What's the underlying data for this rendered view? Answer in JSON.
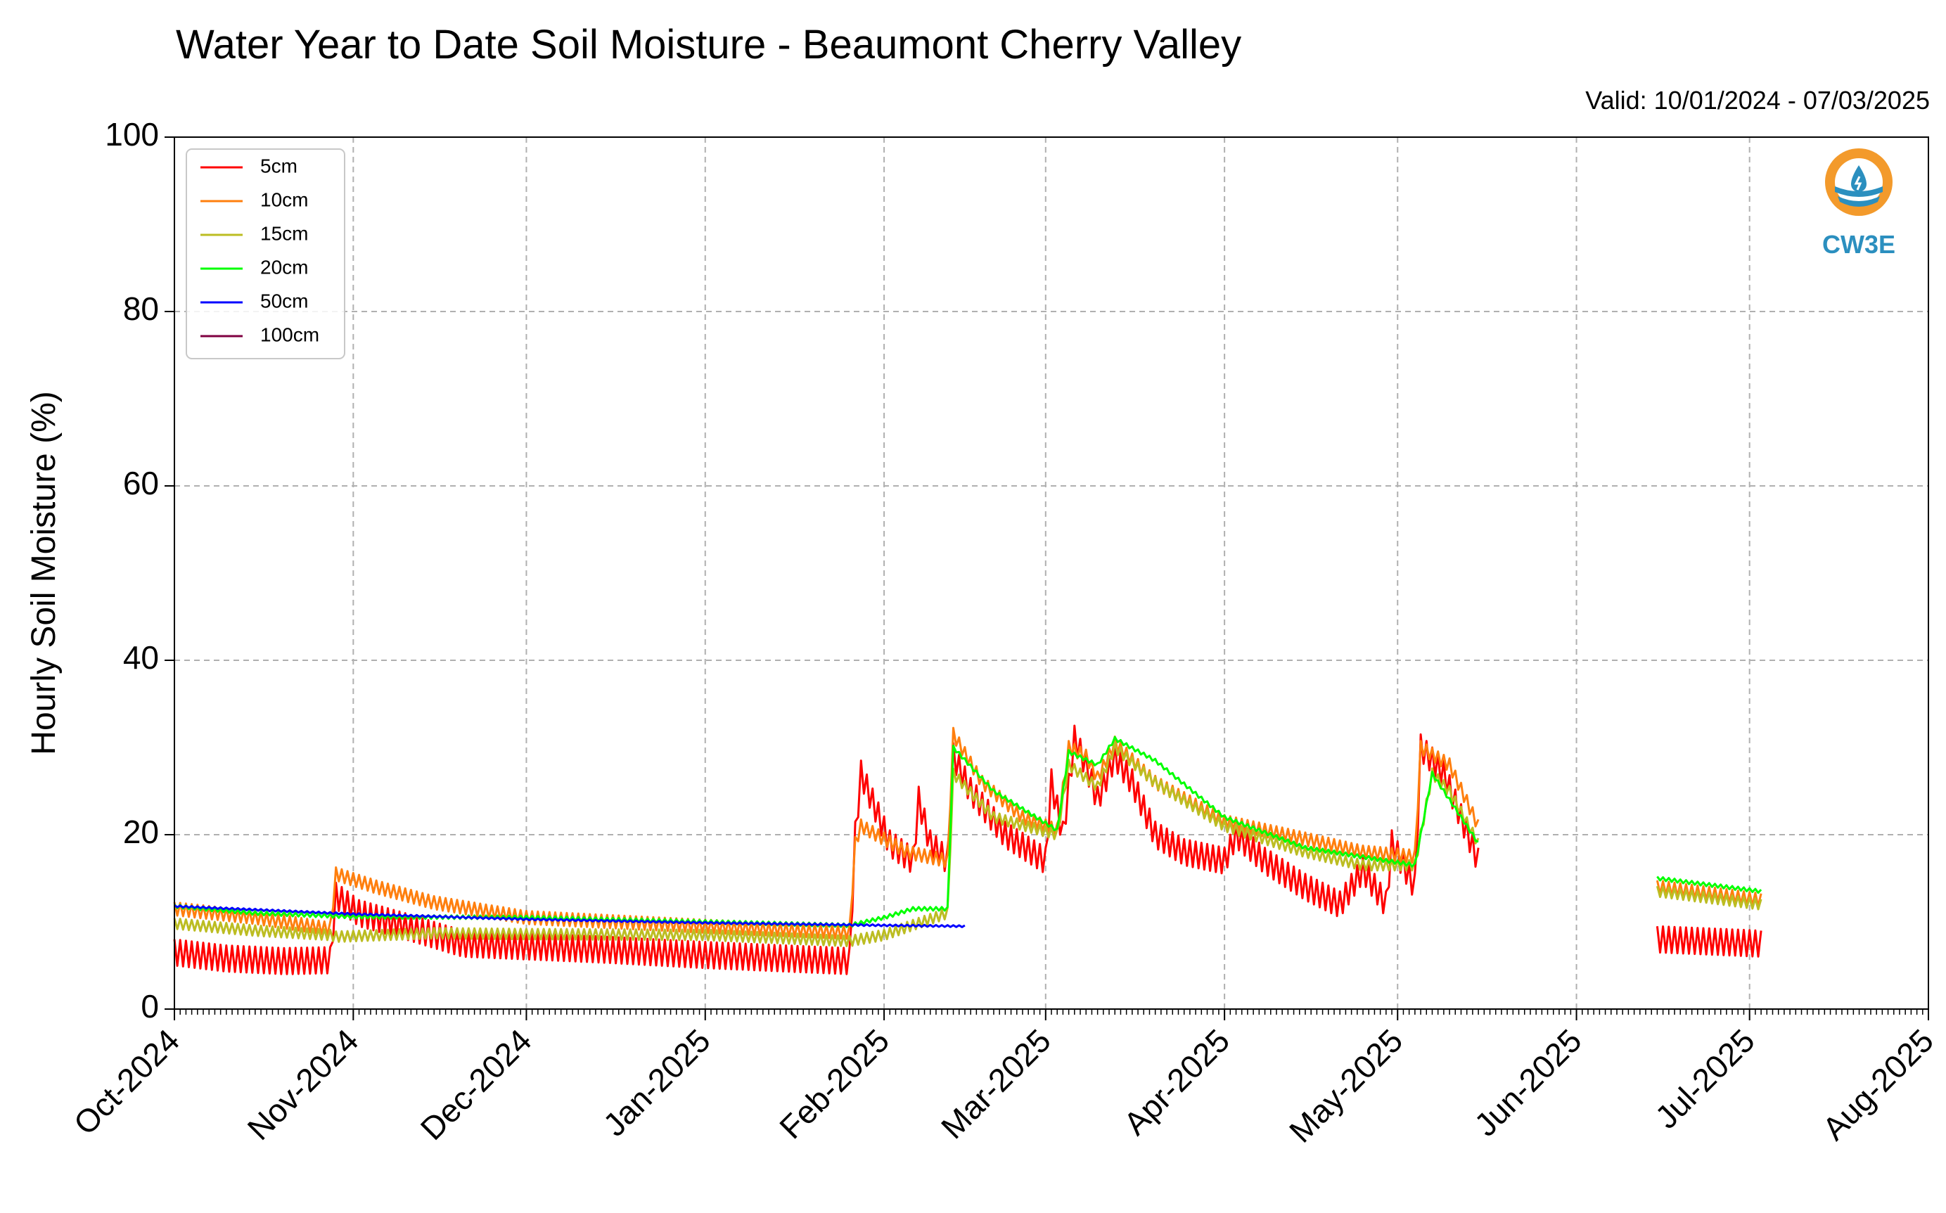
{
  "chart_data": {
    "type": "line",
    "title": "Water Year to Date Soil Moisture - Beaumont Cherry Valley",
    "subtitle": "Valid: 10/01/2024 - 07/03/2025",
    "ylabel": "Hourly Soil Moisture (%)",
    "xlabel": "",
    "ylim": [
      0,
      100
    ],
    "xlim": [
      "2024-10-01",
      "2025-08-01"
    ],
    "yticks": [
      0,
      20,
      40,
      60,
      80,
      100
    ],
    "xticks": [
      "Oct-2024",
      "Nov-2024",
      "Dec-2024",
      "Jan-2025",
      "Feb-2025",
      "Mar-2025",
      "Apr-2025",
      "May-2025",
      "Jun-2025",
      "Jul-2025",
      "Aug-2025"
    ],
    "xtick_dates": [
      "2024-10-01",
      "2024-11-01",
      "2024-12-01",
      "2025-01-01",
      "2025-02-01",
      "2025-03-01",
      "2025-04-01",
      "2025-05-01",
      "2025-06-01",
      "2025-07-01",
      "2025-08-01"
    ],
    "grid": true,
    "legend_position": "top-left",
    "series": [
      {
        "name": "5cm",
        "color": "#ff0000",
        "daily_amplitude": 3.0,
        "points": [
          [
            "2024-10-01",
            6.5
          ],
          [
            "2024-10-10",
            5.8
          ],
          [
            "2024-10-20",
            5.5
          ],
          [
            "2024-10-28",
            5.6
          ],
          [
            "2024-10-29",
            13
          ],
          [
            "2024-11-02",
            11
          ],
          [
            "2024-11-10",
            9.5
          ],
          [
            "2024-11-20",
            7.5
          ],
          [
            "2024-12-01",
            7.2
          ],
          [
            "2024-12-15",
            6.8
          ],
          [
            "2025-01-01",
            6.2
          ],
          [
            "2025-01-15",
            5.8
          ],
          [
            "2025-01-26",
            5.5
          ],
          [
            "2025-01-27",
            20
          ],
          [
            "2025-01-28",
            27
          ],
          [
            "2025-02-02",
            19
          ],
          [
            "2025-02-06",
            17
          ],
          [
            "2025-02-07",
            24
          ],
          [
            "2025-02-09",
            19
          ],
          [
            "2025-02-12",
            17
          ],
          [
            "2025-02-13",
            29
          ],
          [
            "2025-02-16",
            25
          ],
          [
            "2025-02-22",
            20
          ],
          [
            "2025-03-01",
            17
          ],
          [
            "2025-03-02",
            26
          ],
          [
            "2025-03-04",
            20
          ],
          [
            "2025-03-06",
            31
          ],
          [
            "2025-03-08",
            28
          ],
          [
            "2025-03-10",
            24
          ],
          [
            "2025-03-13",
            29
          ],
          [
            "2025-03-16",
            26
          ],
          [
            "2025-03-20",
            20
          ],
          [
            "2025-03-25",
            18
          ],
          [
            "2025-04-01",
            17
          ],
          [
            "2025-04-03",
            20
          ],
          [
            "2025-04-08",
            17
          ],
          [
            "2025-04-15",
            14
          ],
          [
            "2025-04-21",
            12
          ],
          [
            "2025-04-25",
            16
          ],
          [
            "2025-04-29",
            12
          ],
          [
            "2025-04-30",
            19
          ],
          [
            "2025-05-04",
            14
          ],
          [
            "2025-05-05",
            30
          ],
          [
            "2025-05-09",
            27
          ],
          [
            "2025-05-15",
            17
          ],
          [
            "null",
            null
          ],
          [
            "2025-06-15",
            8
          ],
          [
            "2025-07-03",
            7.5
          ]
        ]
      },
      {
        "name": "10cm",
        "color": "#ff7f0e",
        "daily_amplitude": 1.5,
        "points": [
          [
            "2024-10-01",
            11.5
          ],
          [
            "2024-10-15",
            10.5
          ],
          [
            "2024-10-28",
            9.2
          ],
          [
            "2024-10-29",
            15.5
          ],
          [
            "2024-11-05",
            14
          ],
          [
            "2024-11-15",
            12.2
          ],
          [
            "2024-12-01",
            10.5
          ],
          [
            "2025-01-01",
            9.5
          ],
          [
            "2025-01-26",
            8.8
          ],
          [
            "2025-01-27",
            19
          ],
          [
            "2025-01-28",
            21
          ],
          [
            "2025-02-05",
            18
          ],
          [
            "2025-02-12",
            17
          ],
          [
            "2025-02-13",
            31.5
          ],
          [
            "2025-02-18",
            26
          ],
          [
            "2025-02-25",
            22
          ],
          [
            "2025-03-03",
            20.5
          ],
          [
            "2025-03-05",
            30
          ],
          [
            "2025-03-08",
            29
          ],
          [
            "2025-03-10",
            26.5
          ],
          [
            "2025-03-13",
            30.5
          ],
          [
            "2025-03-20",
            26
          ],
          [
            "2025-04-01",
            21.5
          ],
          [
            "2025-04-15",
            19.5
          ],
          [
            "2025-04-25",
            18
          ],
          [
            "2025-05-04",
            17.5
          ],
          [
            "2025-05-05",
            30
          ],
          [
            "2025-05-10",
            28
          ],
          [
            "2025-05-15",
            21
          ],
          [
            "null",
            null
          ],
          [
            "2025-06-15",
            14
          ],
          [
            "2025-07-03",
            12.5
          ]
        ]
      },
      {
        "name": "15cm",
        "color": "#bcbd22",
        "daily_amplitude": 1.2,
        "points": [
          [
            "2024-10-01",
            9.8
          ],
          [
            "2024-10-15",
            9.0
          ],
          [
            "2024-10-28",
            8.5
          ],
          [
            "2024-10-29",
            8.3
          ],
          [
            "2024-11-15",
            8.7
          ],
          [
            "2024-12-01",
            8.6
          ],
          [
            "2025-01-01",
            8.5
          ],
          [
            "2025-01-26",
            7.8
          ],
          [
            "2025-02-01",
            8.5
          ],
          [
            "2025-02-12",
            11
          ],
          [
            "2025-02-13",
            27
          ],
          [
            "2025-02-20",
            22
          ],
          [
            "2025-03-03",
            20
          ],
          [
            "2025-03-05",
            28
          ],
          [
            "2025-03-10",
            25.5
          ],
          [
            "2025-03-13",
            30
          ],
          [
            "2025-03-20",
            26
          ],
          [
            "2025-04-01",
            21
          ],
          [
            "2025-04-15",
            18
          ],
          [
            "2025-04-25",
            16.5
          ],
          [
            "2025-05-04",
            16.5
          ],
          [
            "2025-05-07",
            27
          ],
          [
            "2025-05-10",
            25
          ],
          [
            "2025-05-15",
            19
          ],
          [
            "null",
            null
          ],
          [
            "2025-06-15",
            13.5
          ],
          [
            "2025-07-03",
            12
          ]
        ]
      },
      {
        "name": "20cm",
        "color": "#00ff00",
        "daily_amplitude": 0.4,
        "points": [
          [
            "2024-10-01",
            11.8
          ],
          [
            "2024-10-15",
            11.0
          ],
          [
            "2024-11-01",
            10.6
          ],
          [
            "2024-12-01",
            10.5
          ],
          [
            "2025-01-01",
            10.0
          ],
          [
            "2025-01-26",
            9.6
          ],
          [
            "2025-02-01",
            10.5
          ],
          [
            "2025-02-06",
            11.5
          ],
          [
            "2025-02-12",
            11.5
          ],
          [
            "2025-02-13",
            30
          ],
          [
            "2025-02-20",
            25
          ],
          [
            "2025-03-03",
            20.5
          ],
          [
            "2025-03-05",
            29.5
          ],
          [
            "2025-03-10",
            28
          ],
          [
            "2025-03-13",
            31
          ],
          [
            "2025-03-20",
            28.5
          ],
          [
            "2025-04-01",
            22
          ],
          [
            "2025-04-15",
            18.5
          ],
          [
            "2025-05-04",
            16.5
          ],
          [
            "2025-05-07",
            27
          ],
          [
            "2025-05-10",
            24
          ],
          [
            "2025-05-15",
            19
          ],
          [
            "null",
            null
          ],
          [
            "2025-06-15",
            15
          ],
          [
            "2025-07-03",
            13.5
          ]
        ]
      },
      {
        "name": "50cm",
        "color": "#0000ff",
        "daily_amplitude": 0.2,
        "points": [
          [
            "2024-10-01",
            11.8
          ],
          [
            "2024-11-01",
            10.9
          ],
          [
            "2024-12-01",
            10.3
          ],
          [
            "2025-01-01",
            9.9
          ],
          [
            "2025-02-01",
            9.6
          ],
          [
            "2025-02-15",
            9.5
          ]
        ]
      },
      {
        "name": "100cm",
        "color": "#7f0040",
        "daily_amplitude": 0,
        "points": []
      }
    ]
  },
  "logo": {
    "text": "CW3E",
    "icon": "water-drop-logo-icon"
  }
}
